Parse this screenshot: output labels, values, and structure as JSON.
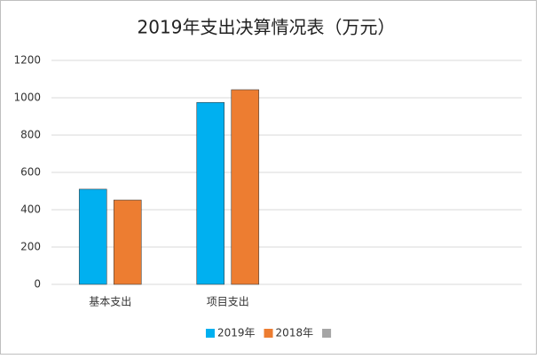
{
  "chart_data": {
    "type": "bar",
    "title": "2019年支出决算情况表（万元）",
    "categories": [
      "基本支出",
      "项目支出",
      null,
      null
    ],
    "series": [
      {
        "name": "2019年",
        "color": "#00b0f0",
        "values": [
          510,
          975,
          null,
          null
        ]
      },
      {
        "name": "2018年",
        "color": "#ed7d31",
        "values": [
          452,
          1043,
          null,
          null
        ]
      },
      {
        "name": null,
        "color": "#a5a5a5",
        "values": [
          null,
          null,
          null,
          null
        ]
      }
    ],
    "ylim": [
      0,
      1200
    ],
    "yticks": [
      0,
      200,
      400,
      600,
      800,
      1000,
      1200
    ],
    "grid": true,
    "legend": "bottom"
  }
}
